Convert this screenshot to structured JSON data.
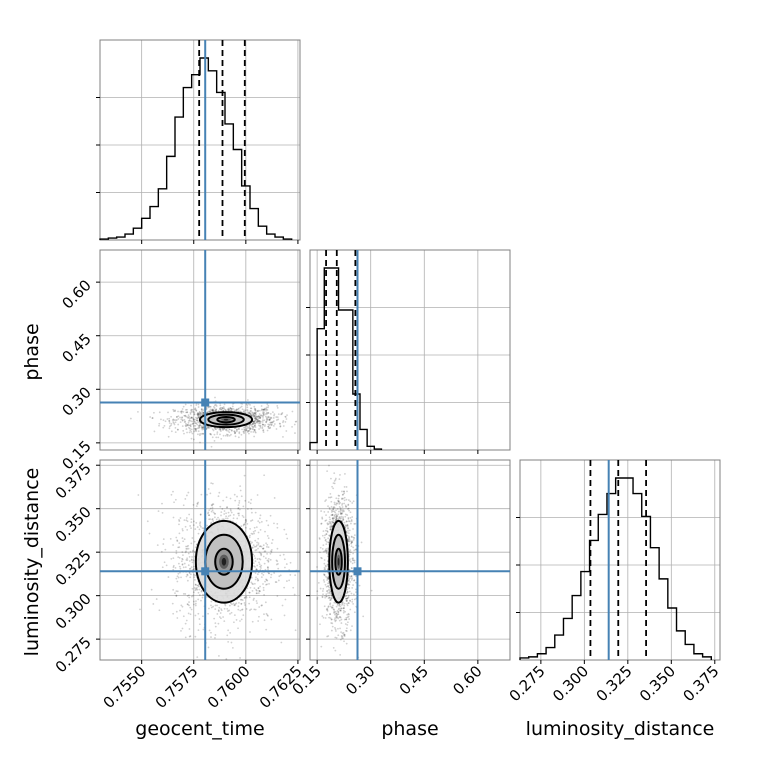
{
  "chart_data": {
    "type": "corner",
    "parameters": [
      "geocent_time",
      "phase",
      "luminosity_distance"
    ],
    "axis_labels": {
      "x": [
        "geocent_time",
        "phase",
        "luminosity_distance"
      ],
      "y": [
        "phase",
        "luminosity_distance"
      ]
    },
    "ranges": {
      "geocent_time": [
        0.753,
        0.7626
      ],
      "phase": [
        0.13,
        0.69
      ],
      "luminosity_distance": [
        0.263,
        0.378
      ]
    },
    "ticks": {
      "geocent_time": [
        "0.7550",
        "0.7575",
        "0.7600",
        "0.7625"
      ],
      "phase": [
        "0.15",
        "0.30",
        "0.45",
        "0.60"
      ],
      "luminosity_distance": [
        "0.275",
        "0.300",
        "0.325",
        "0.350",
        "0.375"
      ]
    },
    "truths": {
      "geocent_time": 0.75805,
      "phase": 0.263,
      "luminosity_distance": 0.314
    },
    "quantiles": {
      "geocent_time": [
        0.75776,
        0.75888,
        0.75995
      ],
      "phase": [
        0.175,
        0.205,
        0.257
      ],
      "luminosity_distance": [
        0.3035,
        0.3195,
        0.3355
      ]
    },
    "histograms": {
      "geocent_time": {
        "edges": [
          0.753,
          0.7534,
          0.7538,
          0.7542,
          0.7546,
          0.755,
          0.7554,
          0.7558,
          0.7562,
          0.7566,
          0.757,
          0.7574,
          0.7578,
          0.7582,
          0.7586,
          0.759,
          0.7594,
          0.7598,
          0.7602,
          0.7606,
          0.761,
          0.7614,
          0.7618,
          0.7622
        ],
        "counts": [
          1,
          2,
          3,
          6,
          12,
          22,
          34,
          52,
          85,
          125,
          155,
          168,
          185,
          172,
          150,
          118,
          92,
          55,
          32,
          14,
          6,
          3,
          1
        ]
      },
      "phase": {
        "edges": [
          0.13,
          0.15,
          0.17,
          0.19,
          0.21,
          0.23,
          0.25,
          0.27,
          0.29,
          0.31,
          0.33
        ],
        "counts": [
          8,
          130,
          195,
          195,
          150,
          150,
          60,
          22,
          4,
          1
        ]
      },
      "luminosity_distance": {
        "edges": [
          0.263,
          0.268,
          0.273,
          0.278,
          0.283,
          0.288,
          0.293,
          0.298,
          0.303,
          0.308,
          0.313,
          0.318,
          0.323,
          0.328,
          0.333,
          0.338,
          0.343,
          0.348,
          0.353,
          0.358,
          0.363,
          0.368,
          0.373
        ],
        "counts": [
          2,
          3,
          6,
          12,
          24,
          40,
          62,
          85,
          115,
          140,
          160,
          175,
          175,
          160,
          138,
          108,
          78,
          50,
          28,
          15,
          6,
          3
        ]
      }
    },
    "samples_2d": {
      "geocent_time_vs_phase": {
        "center": [
          0.75905,
          0.215
        ],
        "spread": [
          0.0009,
          0.014
        ],
        "extent": [
          [
            0.7532,
            0.7624
          ],
          [
            0.17,
            0.32
          ]
        ],
        "contour_levels": [
          {
            "rx": 0.00042,
            "ry": 0.0075
          },
          {
            "rx": 0.00085,
            "ry": 0.014
          },
          {
            "rx": 0.00125,
            "ry": 0.021
          }
        ]
      },
      "geocent_time_vs_luminosity_distance": {
        "center": [
          0.75895,
          0.3195
        ],
        "spread": [
          0.0009,
          0.0135
        ],
        "extent": [
          [
            0.7532,
            0.7624
          ],
          [
            0.265,
            0.377
          ]
        ],
        "contour_levels": [
          {
            "rx": 0.00042,
            "ry": 0.0075
          },
          {
            "rx": 0.0009,
            "ry": 0.0155
          },
          {
            "rx": 0.00135,
            "ry": 0.0235
          }
        ]
      },
      "phase_vs_luminosity_distance": {
        "center": [
          0.21,
          0.3195
        ],
        "spread": [
          0.016,
          0.0135
        ],
        "extent": [
          [
            0.14,
            0.4
          ],
          [
            0.265,
            0.377
          ]
        ],
        "contour_levels": [
          {
            "rx": 0.009,
            "ry": 0.0075
          },
          {
            "rx": 0.018,
            "ry": 0.0155
          },
          {
            "rx": 0.026,
            "ry": 0.0235
          }
        ]
      }
    },
    "colors": {
      "truth": "#4682b4",
      "histogram": "#000000",
      "grid": "#b0b0b0",
      "frame": "#808080"
    }
  }
}
